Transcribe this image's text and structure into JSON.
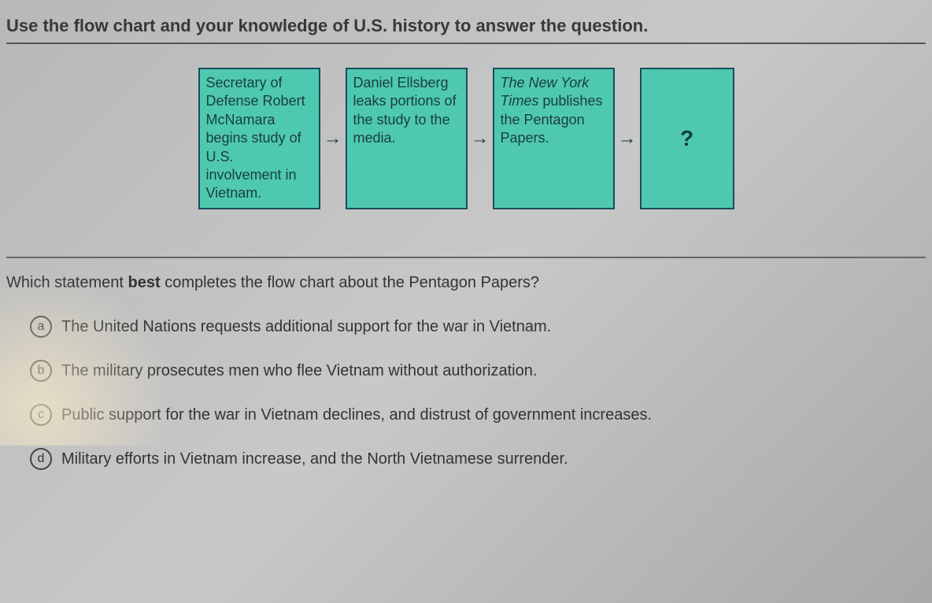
{
  "instruction": "Use the flow chart and your knowledge of U.S. history to answer the question.",
  "flowchart": {
    "boxes": [
      {
        "text": "Secretary of Defense Robert McNamara begins study of U.S. involvement in Vietnam.",
        "italic_part": null
      },
      {
        "text": "Daniel Ellsberg leaks portions of the study to the media.",
        "italic_part": null
      },
      {
        "text_prefix_italic": "The New York Times",
        "text_rest": " publishes the Pentagon Papers."
      },
      {
        "text": "?"
      }
    ],
    "box_bg": "#4ec9b0",
    "box_border": "#1a4d5c"
  },
  "question": {
    "prefix": "Which statement ",
    "bold": "best",
    "suffix": " completes the flow chart about the Pentagon Papers?"
  },
  "options": [
    {
      "letter": "a",
      "text": "The United Nations requests additional support for the war in Vietnam."
    },
    {
      "letter": "b",
      "text": "The military prosecutes men who flee Vietnam without authorization."
    },
    {
      "letter": "c",
      "text": "Public support for the war in Vietnam declines, and distrust of government increases."
    },
    {
      "letter": "d",
      "text": "Military efforts in Vietnam increase, and the North Vietnamese surrender."
    }
  ]
}
